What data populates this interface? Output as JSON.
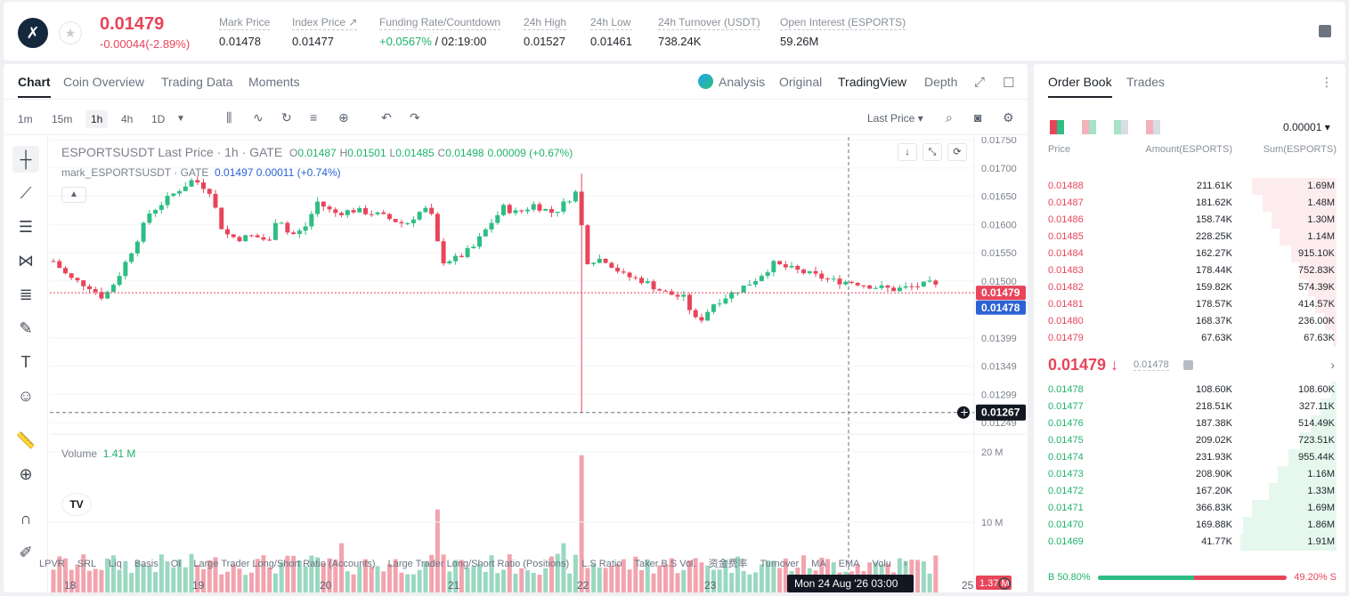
{
  "header": {
    "logo_glyph": "✗",
    "last_price": "0.01479",
    "change": "-0.00044(-2.89%)",
    "stats": [
      {
        "label": "Mark Price",
        "value": "0.01478"
      },
      {
        "label": "Index Price ↗",
        "value": "0.01477"
      },
      {
        "label": "Funding Rate/Countdown",
        "value": "+0.0567%",
        "value2": " / 02:19:00"
      },
      {
        "label": "24h High",
        "value": "0.01527"
      },
      {
        "label": "24h Low",
        "value": "0.01461"
      },
      {
        "label": "24h Turnover (USDT)",
        "value": "738.24K"
      },
      {
        "label": "Open Interest (ESPORTS)",
        "value": "59.26M"
      }
    ]
  },
  "chart_tabs": [
    "Chart",
    "Coin Overview",
    "Trading Data",
    "Moments"
  ],
  "view_tabs": {
    "analysis": "Analysis",
    "original": "Original",
    "tradingview": "TradingView",
    "depth": "Depth"
  },
  "timeframes": [
    "1m",
    "15m",
    "1h",
    "4h",
    "1D"
  ],
  "price_type": "Last Price ▾",
  "legend": {
    "symbol": "ESPORTSUSDT Last Price · 1h · GATE",
    "o_label": "O",
    "o": "0.01487",
    "h_label": "H",
    "h": "0.01501",
    "l_label": "L",
    "l": "0.01485",
    "c_label": "C",
    "c": "0.01498",
    "chg": "0.00009 (+0.67%)",
    "mark_label": "mark_ESPORTSUSDT · GATE",
    "mark_val": "0.01497",
    "mark_chg": "0.00011 (+0.74%)"
  },
  "volume_legend": {
    "label": "Volume",
    "value": "1.41 M"
  },
  "indicators": [
    "LPVR",
    "SRL",
    "Liq",
    "Basis",
    "OI",
    "Large Trader Long/Short Ratio (Accounts)",
    "Large Trader Long/Short Ratio (Positions)",
    "L.S Ratio",
    "Taker B.S Vol.",
    "资金费率",
    "Turnover",
    "MA",
    "EMA",
    "Volu"
  ],
  "chart_data": {
    "type": "candlestick",
    "title": "ESPORTSUSDT Last Price · 1h · GATE",
    "price_ticks": [
      "0.01750",
      "0.01700",
      "0.01650",
      "0.01600",
      "0.01550",
      "0.01500",
      "0.01399",
      "0.01349",
      "0.01299",
      "0.01249"
    ],
    "volume_ticks": [
      "20 M",
      "10 M"
    ],
    "x_ticks": [
      "18",
      "19",
      "20",
      "21",
      "22",
      "23",
      "25"
    ],
    "ylim": [
      0.01235,
      0.01755
    ],
    "last_price_label": "0.01479",
    "mark_price_label": "0.01478",
    "crosshair_price": "0.01267",
    "crosshair_time": "Mon 24 Aug '26   03:00",
    "volume_last": "1.37 M",
    "colors": {
      "up": "#2ebd85",
      "down": "#e8455a"
    }
  },
  "orderbook": {
    "tabs": [
      "Order Book",
      "Trades"
    ],
    "precision": "0.00001 ▾",
    "headers": {
      "price": "Price",
      "amount": "Amount(ESPORTS)",
      "sum": "Sum(ESPORTS)"
    },
    "asks": [
      {
        "price": "0.01488",
        "amount": "211.61K",
        "sum": "1.69M",
        "depth": 0.88
      },
      {
        "price": "0.01487",
        "amount": "181.62K",
        "sum": "1.48M",
        "depth": 0.77
      },
      {
        "price": "0.01486",
        "amount": "158.74K",
        "sum": "1.30M",
        "depth": 0.68
      },
      {
        "price": "0.01485",
        "amount": "228.25K",
        "sum": "1.14M",
        "depth": 0.59
      },
      {
        "price": "0.01484",
        "amount": "162.27K",
        "sum": "915.10K",
        "depth": 0.47
      },
      {
        "price": "0.01483",
        "amount": "178.44K",
        "sum": "752.83K",
        "depth": 0.39
      },
      {
        "price": "0.01482",
        "amount": "159.82K",
        "sum": "574.39K",
        "depth": 0.3
      },
      {
        "price": "0.01481",
        "amount": "178.57K",
        "sum": "414.57K",
        "depth": 0.22
      },
      {
        "price": "0.01480",
        "amount": "168.37K",
        "sum": "236.00K",
        "depth": 0.12
      },
      {
        "price": "0.01479",
        "amount": "67.63K",
        "sum": "67.63K",
        "depth": 0.04
      }
    ],
    "mid_price": "0.01479 ↓",
    "mid_mark": "0.01478",
    "bids": [
      {
        "price": "0.01478",
        "amount": "108.60K",
        "sum": "108.60K",
        "depth": 0.06
      },
      {
        "price": "0.01477",
        "amount": "218.51K",
        "sum": "327.11K",
        "depth": 0.17
      },
      {
        "price": "0.01476",
        "amount": "187.38K",
        "sum": "514.49K",
        "depth": 0.27
      },
      {
        "price": "0.01475",
        "amount": "209.02K",
        "sum": "723.51K",
        "depth": 0.38
      },
      {
        "price": "0.01474",
        "amount": "231.93K",
        "sum": "955.44K",
        "depth": 0.5
      },
      {
        "price": "0.01473",
        "amount": "208.90K",
        "sum": "1.16M",
        "depth": 0.61
      },
      {
        "price": "0.01472",
        "amount": "167.20K",
        "sum": "1.33M",
        "depth": 0.7
      },
      {
        "price": "0.01471",
        "amount": "366.83K",
        "sum": "1.69M",
        "depth": 0.88
      },
      {
        "price": "0.01470",
        "amount": "169.88K",
        "sum": "1.86M",
        "depth": 0.97
      },
      {
        "price": "0.01469",
        "amount": "41.77K",
        "sum": "1.91M",
        "depth": 1.0
      }
    ],
    "ratio": {
      "buy_label": "B 50.80%",
      "sell_label": "49.20% S",
      "buy_pct": 50.8
    }
  }
}
